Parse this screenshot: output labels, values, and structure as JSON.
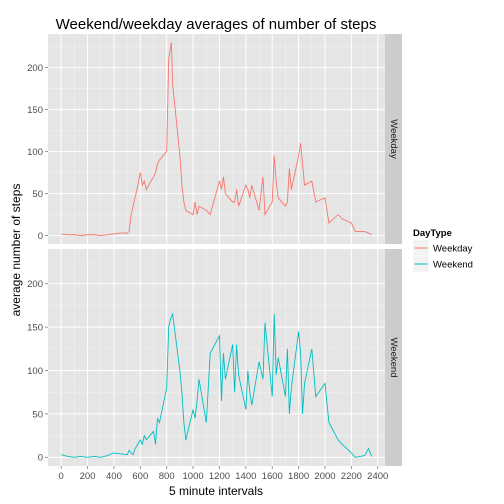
{
  "chart_data": {
    "type": "line",
    "title": "Weekend/weekday averages of number of steps",
    "xlabel": "5 minute intervals",
    "ylabel": "average number of steps",
    "xlim": [
      -100,
      2455
    ],
    "ylim": [
      -10,
      240
    ],
    "x_ticks": [
      0,
      200,
      400,
      600,
      800,
      1000,
      1200,
      1400,
      1600,
      1800,
      2000,
      2200,
      2400
    ],
    "y_ticks": [
      0,
      50,
      100,
      150,
      200
    ],
    "grid": true,
    "legend": {
      "title": "DayType",
      "placement": "right",
      "entries": [
        "Weekday",
        "Weekend"
      ]
    },
    "panels": [
      {
        "label": "Weekday",
        "series_name": "Weekday",
        "color": "#F8766D",
        "x": [
          0,
          50,
          100,
          150,
          200,
          250,
          300,
          350,
          400,
          450,
          500,
          515,
          530,
          545,
          560,
          575,
          600,
          615,
          630,
          645,
          700,
          715,
          730,
          745,
          800,
          815,
          830,
          835,
          845,
          900,
          915,
          930,
          945,
          1000,
          1015,
          1030,
          1045,
          1100,
          1130,
          1200,
          1215,
          1230,
          1245,
          1300,
          1315,
          1330,
          1345,
          1400,
          1415,
          1430,
          1445,
          1500,
          1530,
          1545,
          1600,
          1615,
          1630,
          1645,
          1700,
          1715,
          1730,
          1745,
          1800,
          1815,
          1830,
          1845,
          1900,
          1930,
          2000,
          2030,
          2100,
          2130,
          2200,
          2230,
          2300,
          2330,
          2355
        ],
        "y": [
          2,
          1,
          1,
          0,
          1,
          1,
          0,
          1,
          2,
          3,
          3,
          5,
          25,
          35,
          45,
          55,
          75,
          60,
          65,
          55,
          70,
          75,
          85,
          90,
          100,
          210,
          225,
          230,
          180,
          95,
          60,
          40,
          30,
          25,
          40,
          25,
          35,
          30,
          25,
          65,
          55,
          70,
          50,
          40,
          40,
          55,
          35,
          60,
          55,
          45,
          60,
          30,
          70,
          25,
          40,
          95,
          65,
          45,
          35,
          40,
          80,
          55,
          95,
          110,
          85,
          60,
          65,
          40,
          45,
          15,
          25,
          20,
          15,
          5,
          5,
          3,
          1
        ]
      },
      {
        "label": "Weekend",
        "series_name": "Weekend",
        "color": "#00BFC4",
        "x": [
          0,
          50,
          100,
          150,
          200,
          250,
          300,
          350,
          400,
          450,
          500,
          515,
          530,
          545,
          560,
          600,
          615,
          630,
          645,
          700,
          715,
          730,
          745,
          800,
          815,
          830,
          845,
          900,
          915,
          930,
          945,
          1000,
          1015,
          1030,
          1045,
          1100,
          1115,
          1130,
          1200,
          1215,
          1230,
          1245,
          1300,
          1315,
          1330,
          1345,
          1400,
          1415,
          1430,
          1445,
          1500,
          1530,
          1545,
          1600,
          1615,
          1630,
          1645,
          1700,
          1715,
          1730,
          1745,
          1800,
          1815,
          1830,
          1845,
          1900,
          1930,
          2000,
          2030,
          2100,
          2130,
          2200,
          2230,
          2300,
          2330,
          2355
        ],
        "y": [
          3,
          1,
          0,
          1,
          0,
          1,
          0,
          2,
          5,
          4,
          3,
          8,
          5,
          3,
          10,
          20,
          15,
          25,
          20,
          30,
          15,
          45,
          40,
          80,
          150,
          160,
          165,
          100,
          75,
          40,
          20,
          55,
          45,
          65,
          90,
          40,
          80,
          120,
          140,
          65,
          120,
          90,
          130,
          75,
          130,
          95,
          55,
          100,
          75,
          60,
          110,
          90,
          155,
          70,
          165,
          95,
          115,
          70,
          125,
          50,
          80,
          145,
          120,
          50,
          85,
          125,
          70,
          85,
          40,
          20,
          15,
          5,
          0,
          2,
          10,
          1
        ]
      }
    ]
  }
}
